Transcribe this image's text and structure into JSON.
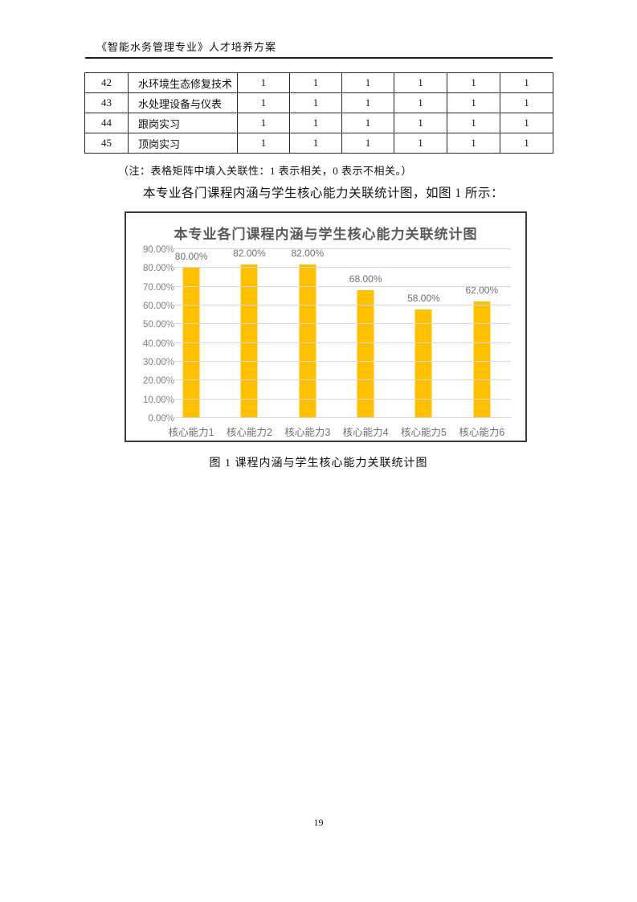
{
  "header": {
    "title": "《智能水务管理专业》人才培养方案"
  },
  "table": {
    "note": "（注：表格矩阵中填入关联性：1 表示相关，0 表示不相关。）",
    "rows": [
      {
        "no": "42",
        "name": "水环境生态修复技术",
        "values": [
          "1",
          "1",
          "1",
          "1",
          "1",
          "1"
        ]
      },
      {
        "no": "43",
        "name": "水处理设备与仪表",
        "values": [
          "1",
          "1",
          "1",
          "1",
          "1",
          "1"
        ]
      },
      {
        "no": "44",
        "name": "跟岗实习",
        "values": [
          "1",
          "1",
          "1",
          "1",
          "1",
          "1"
        ]
      },
      {
        "no": "45",
        "name": "顶岗实习",
        "values": [
          "1",
          "1",
          "1",
          "1",
          "1",
          "1"
        ]
      }
    ]
  },
  "paragraph": "本专业各门课程内涵与学生核心能力关联统计图，如图 1 所示：",
  "figure": {
    "caption": "图 1  课程内涵与学生核心能力关联统计图"
  },
  "footer": {
    "page_number": "19"
  },
  "chart_data": {
    "type": "bar",
    "title": "本专业各门课程内涵与学生核心能力关联统计图",
    "categories": [
      "核心能力1",
      "核心能力2",
      "核心能力3",
      "核心能力4",
      "核心能力5",
      "核心能力6"
    ],
    "values": [
      80,
      82,
      82,
      68,
      58,
      62
    ],
    "data_labels": [
      "80.00%",
      "82.00%",
      "82.00%",
      "68.00%",
      "58.00%",
      "62.00%"
    ],
    "y_ticks": [
      "90.00%",
      "80.00%",
      "70.00%",
      "60.00%",
      "50.00%",
      "40.00%",
      "30.00%",
      "20.00%",
      "10.00%",
      "0.00%"
    ],
    "ylim": [
      0,
      90
    ],
    "grid": true,
    "legend": "none",
    "bar_color": "#ffc000",
    "grid_color": "#d9d9d9",
    "axis_label_color": "#7f7f7f",
    "title_color": "#595959"
  }
}
